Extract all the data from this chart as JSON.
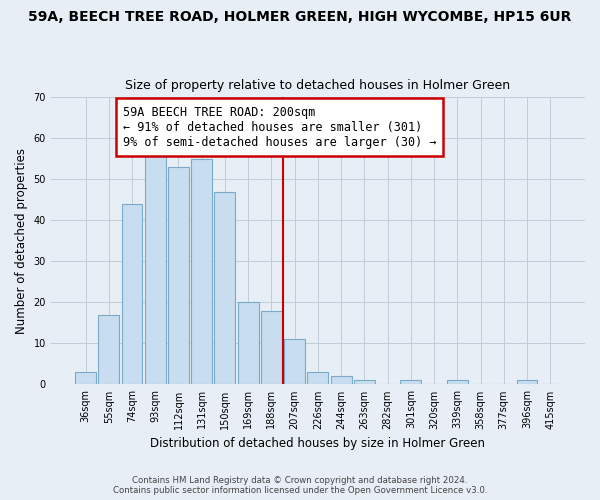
{
  "title": "59A, BEECH TREE ROAD, HOLMER GREEN, HIGH WYCOMBE, HP15 6UR",
  "subtitle": "Size of property relative to detached houses in Holmer Green",
  "xlabel": "Distribution of detached houses by size in Holmer Green",
  "ylabel": "Number of detached properties",
  "bar_labels": [
    "36sqm",
    "55sqm",
    "74sqm",
    "93sqm",
    "112sqm",
    "131sqm",
    "150sqm",
    "169sqm",
    "188sqm",
    "207sqm",
    "226sqm",
    "244sqm",
    "263sqm",
    "282sqm",
    "301sqm",
    "320sqm",
    "339sqm",
    "358sqm",
    "377sqm",
    "396sqm",
    "415sqm"
  ],
  "bar_values": [
    3,
    17,
    44,
    56,
    53,
    55,
    47,
    20,
    18,
    11,
    3,
    2,
    1,
    0,
    1,
    0,
    1,
    0,
    0,
    1,
    0
  ],
  "bar_color": "#c8ddef",
  "bar_edge_color": "#7aaac8",
  "vline_color": "#cc0000",
  "vline_index": 9,
  "ylim": [
    0,
    70
  ],
  "yticks": [
    0,
    10,
    20,
    30,
    40,
    50,
    60,
    70
  ],
  "annotation_title": "59A BEECH TREE ROAD: 200sqm",
  "annotation_line1": "← 91% of detached houses are smaller (301)",
  "annotation_line2": "9% of semi-detached houses are larger (30) →",
  "footer1": "Contains HM Land Registry data © Crown copyright and database right 2024.",
  "footer2": "Contains public sector information licensed under the Open Government Licence v3.0.",
  "bg_color": "#e8eef5",
  "plot_bg_color": "#e8eef5",
  "grid_color": "#c0ccd8",
  "title_fontsize": 10,
  "subtitle_fontsize": 9,
  "axis_label_fontsize": 8.5,
  "tick_fontsize": 7,
  "annotation_fontsize": 8.5
}
